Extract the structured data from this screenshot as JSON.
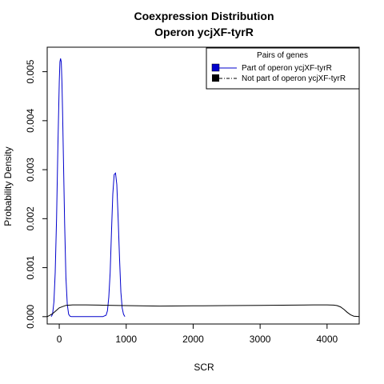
{
  "chart_data": {
    "type": "line",
    "title": "Coexpression Distribution",
    "subtitle": "Operon ycjXF-tyrR",
    "xlabel": "SCR",
    "ylabel": "Probability Density",
    "xlim": [
      -180,
      4480
    ],
    "ylim": [
      -0.00015,
      0.0055
    ],
    "xticks": [
      0,
      1000,
      2000,
      3000,
      4000
    ],
    "xtick_labels": [
      "0",
      "1000",
      "2000",
      "3000",
      "4000"
    ],
    "yticks": [
      0.0,
      0.001,
      0.002,
      0.003,
      0.004,
      0.005
    ],
    "ytick_labels": [
      "0.000",
      "0.001",
      "0.002",
      "0.003",
      "0.004",
      "0.005"
    ],
    "grid": false,
    "legend": {
      "title": "Pairs of genes",
      "position": "top-right",
      "entries": [
        {
          "label": "Part of operon ycjXF-tyrR",
          "color": "#0000cc",
          "line": "solid"
        },
        {
          "label": "Not part of operon ycjXF-tyrR",
          "color": "#000000",
          "line": "dashdot"
        }
      ]
    },
    "series": [
      {
        "name": "Part of operon ycjXF-tyrR",
        "color": "#0000cc",
        "x": [
          -120,
          -100,
          -80,
          -60,
          -40,
          -20,
          0,
          10,
          20,
          30,
          40,
          50,
          60,
          80,
          100,
          120,
          140,
          160,
          180,
          200,
          250,
          300,
          400,
          500,
          600,
          650,
          700,
          720,
          740,
          760,
          780,
          800,
          820,
          840,
          860,
          880,
          900,
          920,
          940,
          960,
          980
        ],
        "y": [
          0.0,
          5e-05,
          0.0003,
          0.0009,
          0.002,
          0.0035,
          0.0048,
          0.0052,
          0.00527,
          0.0052,
          0.0048,
          0.0042,
          0.0034,
          0.0019,
          0.0008,
          0.00025,
          5e-05,
          1e-05,
          0.0,
          0.0,
          0.0,
          0.0,
          0.0,
          0.0,
          0.0,
          0.0,
          3e-05,
          0.00012,
          0.0004,
          0.0009,
          0.0017,
          0.0025,
          0.0029,
          0.00293,
          0.0027,
          0.002,
          0.0012,
          0.0005,
          0.00018,
          5e-05,
          0.0
        ]
      },
      {
        "name": "Not part of operon ycjXF-tyrR",
        "color": "#000000",
        "x": [
          -180,
          -150,
          -100,
          -50,
          0,
          100,
          200,
          400,
          600,
          800,
          1000,
          1200,
          1500,
          2000,
          2500,
          3000,
          3500,
          3800,
          4000,
          4100,
          4150,
          4200,
          4250,
          4300,
          4350,
          4400,
          4480
        ],
        "y": [
          0.0,
          2e-05,
          6e-05,
          0.00012,
          0.00018,
          0.00023,
          0.00024,
          0.00024,
          0.000235,
          0.00023,
          0.000225,
          0.00022,
          0.000215,
          0.00022,
          0.000225,
          0.00023,
          0.000235,
          0.00024,
          0.00024,
          0.000235,
          0.000225,
          0.0002,
          0.00015,
          9e-05,
          4e-05,
          1e-05,
          0.0
        ]
      }
    ]
  }
}
